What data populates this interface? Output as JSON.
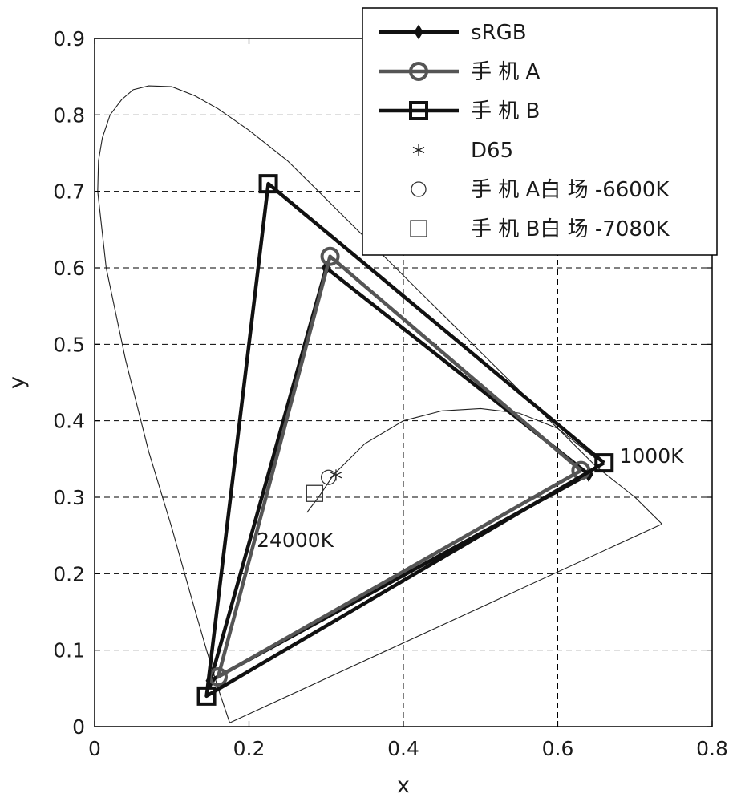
{
  "chart_data": {
    "type": "scatter",
    "xlabel": "x",
    "ylabel": "y",
    "xlim": [
      0,
      0.8
    ],
    "ylim": [
      0,
      0.9
    ],
    "xticks": [
      "0",
      "0.2",
      "0.4",
      "0.6",
      "0.8"
    ],
    "yticks": [
      "0",
      "0.1",
      "0.2",
      "0.3",
      "0.4",
      "0.5",
      "0.6",
      "0.7",
      "0.8",
      "0.9"
    ],
    "grid": true,
    "legend_position": "top-right",
    "spectral_locus": {
      "x": [
        0.175,
        0.17,
        0.16,
        0.145,
        0.125,
        0.1,
        0.07,
        0.04,
        0.015,
        0.004,
        0.005,
        0.01,
        0.02,
        0.035,
        0.05,
        0.07,
        0.1,
        0.13,
        0.16,
        0.2,
        0.25,
        0.3,
        0.35,
        0.4,
        0.45,
        0.5,
        0.55,
        0.6,
        0.65,
        0.7,
        0.735
      ],
      "y": [
        0.005,
        0.02,
        0.05,
        0.1,
        0.17,
        0.26,
        0.36,
        0.48,
        0.6,
        0.7,
        0.74,
        0.77,
        0.8,
        0.82,
        0.833,
        0.838,
        0.837,
        0.825,
        0.808,
        0.78,
        0.74,
        0.69,
        0.64,
        0.59,
        0.54,
        0.49,
        0.44,
        0.39,
        0.34,
        0.3,
        0.265
      ]
    },
    "purple_line": {
      "x": [
        0.735,
        0.175
      ],
      "y": [
        0.265,
        0.005
      ]
    },
    "planckian_locus": {
      "x": [
        0.275,
        0.29,
        0.31,
        0.35,
        0.4,
        0.45,
        0.5,
        0.55,
        0.6,
        0.65
      ],
      "y": [
        0.28,
        0.3,
        0.33,
        0.37,
        0.4,
        0.413,
        0.416,
        0.41,
        0.39,
        0.35
      ]
    },
    "series": [
      {
        "name": "sRGB",
        "marker": "diamond",
        "color": "#111111",
        "x": [
          0.64,
          0.3,
          0.15
        ],
        "y": [
          0.33,
          0.6,
          0.06
        ]
      },
      {
        "name": "手 机 A",
        "marker": "circle",
        "color": "#555555",
        "x": [
          0.63,
          0.305,
          0.16
        ],
        "y": [
          0.335,
          0.615,
          0.065
        ]
      },
      {
        "name": "手 机 B",
        "marker": "square",
        "color": "#111111",
        "x": [
          0.66,
          0.225,
          0.145
        ],
        "y": [
          0.345,
          0.71,
          0.04
        ]
      }
    ],
    "points": [
      {
        "name": "D65",
        "marker": "asterisk",
        "x": 0.3127,
        "y": 0.329
      },
      {
        "name": "手 机 A白 场 -6600K",
        "marker": "open-circle",
        "x": 0.303,
        "y": 0.326
      },
      {
        "name": "手 机 B白 场 -7080K",
        "marker": "open-square",
        "x": 0.285,
        "y": 0.305
      }
    ],
    "annotations": [
      {
        "text": "1000K",
        "x": 0.68,
        "y": 0.345
      },
      {
        "text": "24000K",
        "x": 0.21,
        "y": 0.235
      }
    ]
  }
}
